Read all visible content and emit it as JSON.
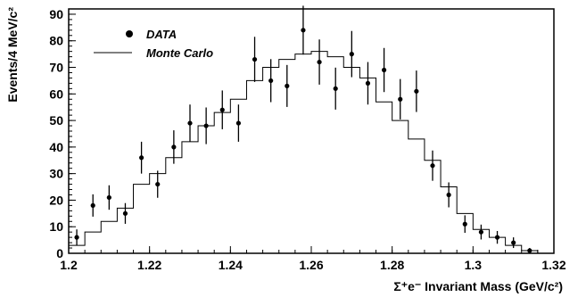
{
  "chart_data": {
    "type": "scatter",
    "xlabel": "Σ⁺e⁻ Invariant Mass (GeV/c²)",
    "ylabel": "Events/4 MeV/c²",
    "xlim": [
      1.2,
      1.32
    ],
    "ylim": [
      0,
      92
    ],
    "x_ticks": [
      1.2,
      1.22,
      1.24,
      1.26,
      1.28,
      1.3,
      1.32
    ],
    "x_tick_labels": [
      "1.2",
      "1.22",
      "1.24",
      "1.26",
      "1.28",
      "1.3",
      "1.32"
    ],
    "y_ticks": [
      0,
      10,
      20,
      30,
      40,
      50,
      60,
      70,
      80,
      90
    ],
    "y_tick_labels": [
      "0",
      "10",
      "20",
      "30",
      "40",
      "50",
      "60",
      "70",
      "80",
      "90"
    ],
    "legend": {
      "position": "top-left",
      "entries": [
        {
          "label": "DATA",
          "marker": "dot"
        },
        {
          "label": "Monte Carlo",
          "marker": "line"
        }
      ]
    },
    "series": [
      {
        "name": "DATA",
        "kind": "points-with-errors",
        "x": [
          1.202,
          1.206,
          1.21,
          1.214,
          1.218,
          1.222,
          1.226,
          1.23,
          1.234,
          1.238,
          1.242,
          1.246,
          1.25,
          1.254,
          1.258,
          1.262,
          1.266,
          1.27,
          1.274,
          1.278,
          1.282,
          1.286,
          1.29,
          1.294,
          1.298,
          1.302,
          1.306,
          1.31,
          1.314
        ],
        "y": [
          6,
          18,
          21,
          15,
          36,
          26,
          40,
          49,
          48,
          54,
          49,
          73,
          65,
          63,
          84,
          72,
          62,
          75,
          64,
          69,
          58,
          61,
          33,
          22,
          11,
          8,
          6,
          4,
          1
        ],
        "err": [
          3,
          4.2,
          4.6,
          3.9,
          6,
          5.1,
          6.3,
          7,
          6.9,
          7.3,
          7,
          8.5,
          8.1,
          7.9,
          9.2,
          8.5,
          7.9,
          8.7,
          8,
          8.3,
          7.6,
          7.8,
          5.7,
          4.7,
          3.3,
          2.8,
          2.4,
          2,
          1
        ]
      },
      {
        "name": "Monte Carlo",
        "kind": "step",
        "bin_edges": [
          1.2,
          1.204,
          1.208,
          1.212,
          1.216,
          1.22,
          1.224,
          1.228,
          1.232,
          1.236,
          1.24,
          1.244,
          1.248,
          1.252,
          1.256,
          1.26,
          1.264,
          1.268,
          1.272,
          1.276,
          1.28,
          1.284,
          1.288,
          1.292,
          1.296,
          1.3,
          1.304,
          1.308,
          1.312,
          1.316
        ],
        "values": [
          3,
          8,
          12,
          17,
          26,
          30,
          36,
          42,
          48,
          53,
          58,
          65,
          70,
          73,
          75,
          76,
          74,
          70,
          66,
          57,
          50,
          43,
          35,
          25,
          15,
          9,
          6,
          3,
          1
        ]
      }
    ]
  }
}
